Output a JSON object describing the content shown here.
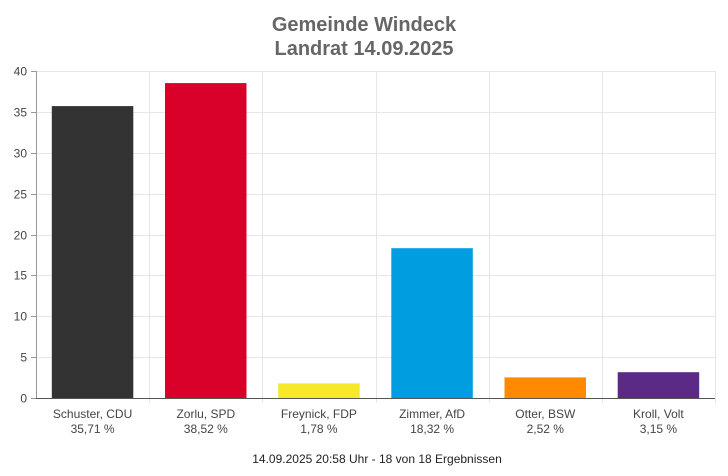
{
  "chart_data": {
    "type": "bar",
    "title": [
      "Gemeinde Windeck",
      "Landrat 14.09.2025"
    ],
    "categories": [
      "Schuster, CDU",
      "Zorlu, SPD",
      "Freynick, FDP",
      "Zimmer, AfD",
      "Otter, BSW",
      "Kroll, Volt"
    ],
    "percent_labels": [
      "35,71 %",
      "38,52 %",
      "1,78 %",
      "18,32 %",
      "2,52 %",
      "3,15 %"
    ],
    "values": [
      35.71,
      38.52,
      1.78,
      18.32,
      2.52,
      3.15
    ],
    "colors": [
      "#333333",
      "#d9002a",
      "#f5e92a",
      "#009ee0",
      "#ff8a00",
      "#5b2a86"
    ],
    "ylim": [
      0,
      40
    ],
    "yticks": [
      0,
      5,
      10,
      15,
      20,
      25,
      30,
      35,
      40
    ],
    "xlabel": "",
    "ylabel": "",
    "grid": true
  },
  "footer": "14.09.2025 20:58 Uhr - 18 von 18 Ergebnissen"
}
